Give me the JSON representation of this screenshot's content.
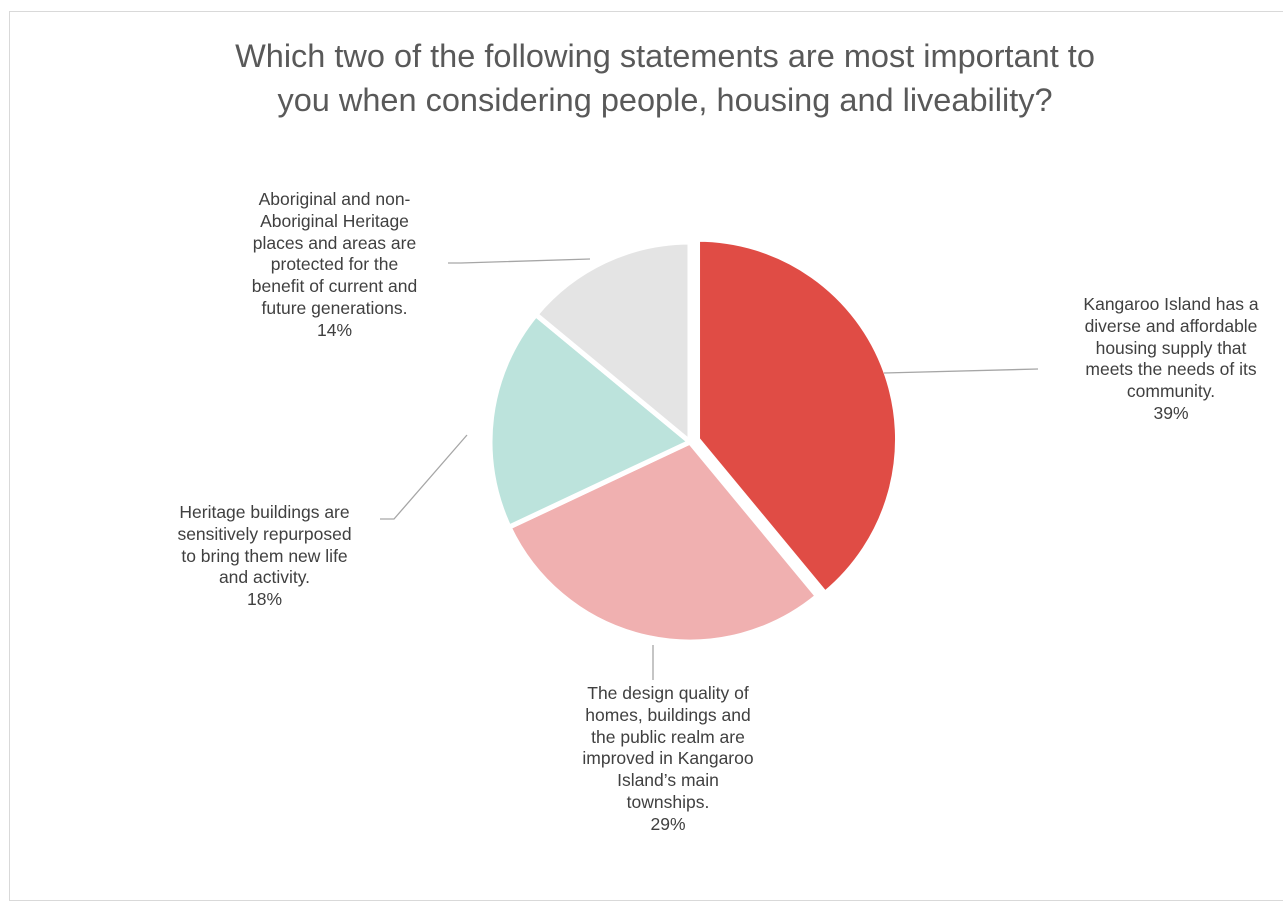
{
  "chart_data": {
    "type": "pie",
    "title": [
      "Which two of the following statements are most important to",
      "you when considering people, housing and liveability?"
    ],
    "slices": [
      {
        "label": [
          "Kangaroo Island has a",
          "diverse and affordable",
          "housing supply that",
          "meets the needs of its",
          "community."
        ],
        "value": 39,
        "value_label": "39%",
        "color": "#E04C45"
      },
      {
        "label": [
          "The design quality of",
          "homes, buildings and",
          "the public realm are",
          "improved in Kangaroo",
          "Island’s main",
          "townships."
        ],
        "value": 29,
        "value_label": "29%",
        "color": "#F0B0B0"
      },
      {
        "label": [
          "Heritage buildings are",
          "sensitively repurposed",
          "to bring them new life",
          "and activity."
        ],
        "value": 18,
        "value_label": "18%",
        "color": "#BCE3DC"
      },
      {
        "label": [
          "Aboriginal and non-",
          "Aboriginal Heritage",
          "places and areas are",
          "protected for the",
          "benefit of current and",
          "future generations."
        ],
        "value": 14,
        "value_label": "14%",
        "color": "#E4E4E4"
      }
    ],
    "leader_color": "#a6a6a6"
  }
}
